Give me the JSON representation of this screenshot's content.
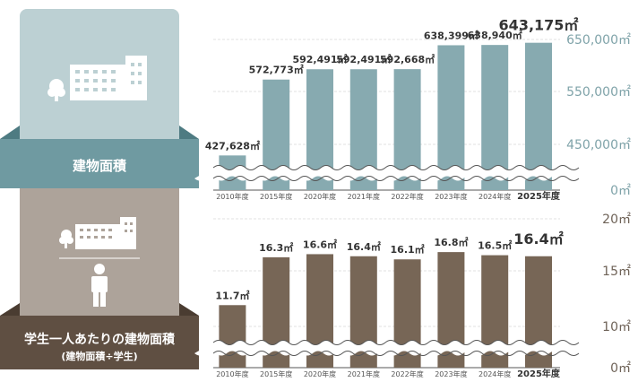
{
  "chart_data": [
    {
      "type": "bar",
      "title": "建物面積",
      "categories": [
        "2010年度",
        "2015年度",
        "2020年度",
        "2021年度",
        "2022年度",
        "2023年度",
        "2024年度",
        "2025年度"
      ],
      "values": [
        427628,
        572773,
        592491,
        592491,
        592668,
        638399,
        638940,
        643175
      ],
      "data_labels": [
        "427,628㎡",
        "572,773㎡",
        "592,491㎡",
        "592,491㎡",
        "592,668㎡",
        "638,399㎡",
        "638,940㎡",
        "643,175㎡"
      ],
      "y_ticks": [
        "650,000㎡",
        "550,000㎡",
        "450,000㎡",
        "0㎡"
      ],
      "y_tick_values": [
        650000,
        550000,
        450000,
        0
      ],
      "axis_break": true,
      "grid": true,
      "color": "#87aab0"
    },
    {
      "type": "bar",
      "title": "学生一人あたりの建物面積",
      "subtitle": "(建物面積÷学生)",
      "categories": [
        "2010年度",
        "2015年度",
        "2020年度",
        "2021年度",
        "2022年度",
        "2023年度",
        "2024年度",
        "2025年度"
      ],
      "values": [
        11.7,
        16.3,
        16.6,
        16.4,
        16.1,
        16.8,
        16.5,
        16.4
      ],
      "data_labels": [
        "11.7㎡",
        "16.3㎡",
        "16.6㎡",
        "16.4㎡",
        "16.1㎡",
        "16.8㎡",
        "16.5㎡",
        "16.4㎡"
      ],
      "y_ticks": [
        "20㎡",
        "15㎡",
        "10㎡",
        "0㎡"
      ],
      "y_tick_values": [
        20,
        15,
        10,
        0
      ],
      "axis_break": true,
      "grid": true,
      "color": "#776656"
    }
  ],
  "icons": {
    "panel1": "building-icon",
    "panel2_top": "building-icon",
    "panel2_bottom": "person-icon"
  },
  "colors": {
    "panel1_bg": "#bcd0d3",
    "panel1_band": "#6f9aa1",
    "panel1_bar": "#87aab0",
    "panel2_bg": "#ada39a",
    "panel2_band": "#5f4f42",
    "panel2_bar": "#776656"
  }
}
